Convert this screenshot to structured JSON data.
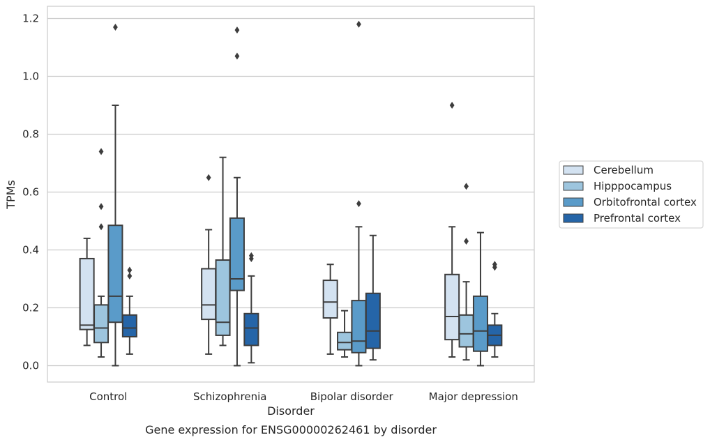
{
  "chart_data": {
    "type": "box",
    "title": "",
    "caption": "Gene expression for ENSG00000262461 by disorder",
    "xlabel": "Disorder",
    "ylabel": "TPMs",
    "ylim": [
      -0.055,
      1.24
    ],
    "yticks": [
      0.0,
      0.2,
      0.4,
      0.6,
      0.8,
      1.0,
      1.2
    ],
    "ytick_labels": [
      "0.0",
      "0.2",
      "0.4",
      "0.6",
      "0.8",
      "1.0",
      "1.2"
    ],
    "grid": "horizontal",
    "legend_placement": "right",
    "categories": [
      "Control",
      "Schizophrenia",
      "Bipolar disorder",
      "Major depression"
    ],
    "series": [
      {
        "name": "Cerebellum",
        "color": "#d3e2f1",
        "boxes": [
          {
            "whislo": 0.07,
            "q1": 0.125,
            "med": 0.14,
            "q3": 0.37,
            "whishi": 0.44,
            "fliers": []
          },
          {
            "whislo": 0.04,
            "q1": 0.16,
            "med": 0.21,
            "q3": 0.335,
            "whishi": 0.47,
            "fliers": [
              0.65
            ]
          },
          {
            "whislo": 0.04,
            "q1": 0.165,
            "med": 0.22,
            "q3": 0.295,
            "whishi": 0.35,
            "fliers": []
          },
          {
            "whislo": 0.03,
            "q1": 0.09,
            "med": 0.17,
            "q3": 0.315,
            "whishi": 0.48,
            "fliers": [
              0.9
            ]
          }
        ]
      },
      {
        "name": "Hipppocampus",
        "color": "#9dc5de",
        "boxes": [
          {
            "whislo": 0.03,
            "q1": 0.08,
            "med": 0.13,
            "q3": 0.21,
            "whishi": 0.24,
            "fliers": [
              0.48,
              0.55,
              0.74
            ]
          },
          {
            "whislo": 0.07,
            "q1": 0.105,
            "med": 0.15,
            "q3": 0.365,
            "whishi": 0.72,
            "fliers": []
          },
          {
            "whislo": 0.03,
            "q1": 0.055,
            "med": 0.08,
            "q3": 0.115,
            "whishi": 0.19,
            "fliers": []
          },
          {
            "whislo": 0.02,
            "q1": 0.065,
            "med": 0.11,
            "q3": 0.175,
            "whishi": 0.29,
            "fliers": [
              0.43,
              0.62
            ]
          }
        ]
      },
      {
        "name": "Orbitofrontal cortex",
        "color": "#5a9bc9",
        "boxes": [
          {
            "whislo": 0.0,
            "q1": 0.15,
            "med": 0.24,
            "q3": 0.485,
            "whishi": 0.9,
            "fliers": [
              1.17
            ]
          },
          {
            "whislo": 0.0,
            "q1": 0.26,
            "med": 0.3,
            "q3": 0.51,
            "whishi": 0.65,
            "fliers": [
              1.07,
              1.16
            ]
          },
          {
            "whislo": 0.0,
            "q1": 0.045,
            "med": 0.085,
            "q3": 0.225,
            "whishi": 0.48,
            "fliers": [
              0.56,
              1.18
            ]
          },
          {
            "whislo": 0.0,
            "q1": 0.05,
            "med": 0.12,
            "q3": 0.24,
            "whishi": 0.46,
            "fliers": []
          }
        ]
      },
      {
        "name": "Prefrontal cortex",
        "color": "#2565a8",
        "boxes": [
          {
            "whislo": 0.04,
            "q1": 0.1,
            "med": 0.13,
            "q3": 0.175,
            "whishi": 0.24,
            "fliers": [
              0.31,
              0.33
            ]
          },
          {
            "whislo": 0.01,
            "q1": 0.07,
            "med": 0.13,
            "q3": 0.18,
            "whishi": 0.31,
            "fliers": [
              0.37,
              0.38
            ]
          },
          {
            "whislo": 0.02,
            "q1": 0.06,
            "med": 0.12,
            "q3": 0.25,
            "whishi": 0.45,
            "fliers": []
          },
          {
            "whislo": 0.03,
            "q1": 0.07,
            "med": 0.105,
            "q3": 0.14,
            "whishi": 0.18,
            "fliers": [
              0.34,
              0.35
            ]
          }
        ]
      }
    ]
  }
}
